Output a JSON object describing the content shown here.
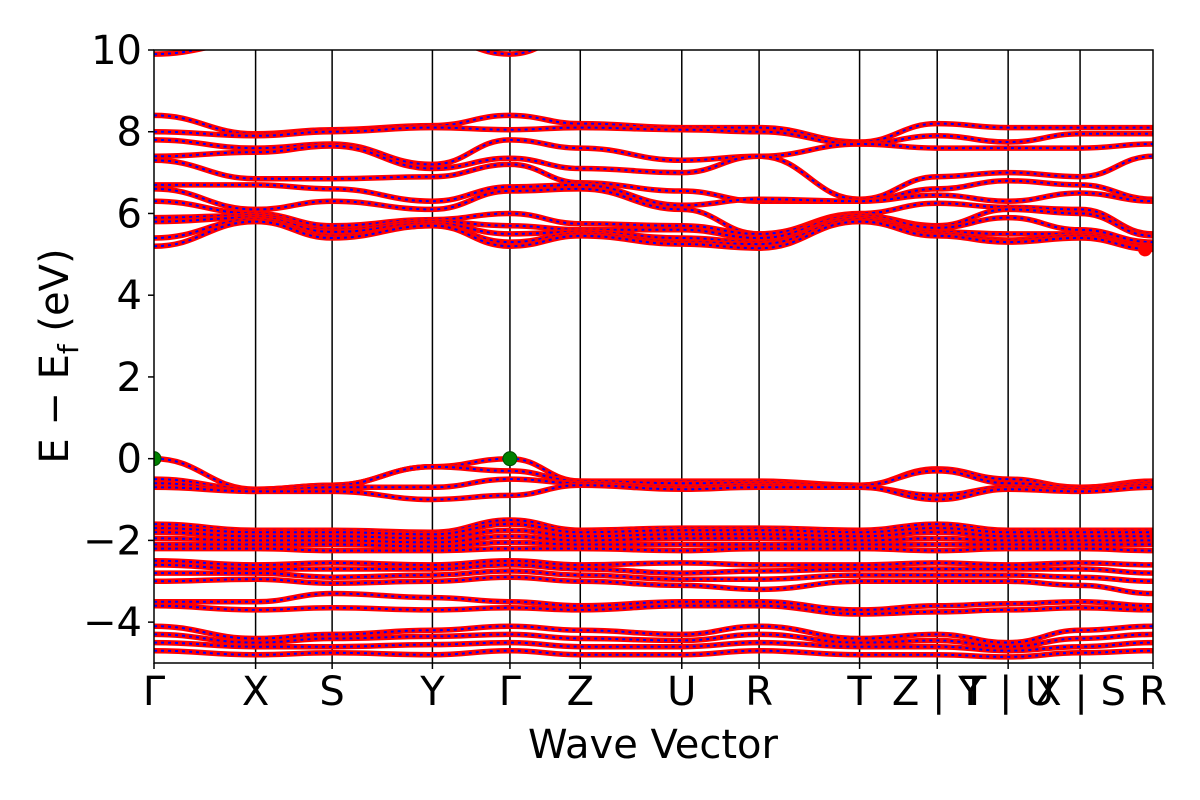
{
  "chart_data": {
    "type": "line",
    "xlabel": "Wave Vector",
    "ylabel_parts": {
      "main": "E − E",
      "sub": "f",
      "unit": " (eV)"
    },
    "ylim": [
      -5,
      10
    ],
    "yticks": [
      {
        "value": -4,
        "label": "−4"
      },
      {
        "value": -2,
        "label": "−2"
      },
      {
        "value": 0,
        "label": "0"
      },
      {
        "value": 2,
        "label": "2"
      },
      {
        "value": 4,
        "label": "4"
      },
      {
        "value": 6,
        "label": "6"
      },
      {
        "value": 8,
        "label": "8"
      },
      {
        "value": 10,
        "label": "10"
      }
    ],
    "kpath_range": [
      0,
      1
    ],
    "kpoints": [
      {
        "pos": 0.0,
        "label": "Γ"
      },
      {
        "pos": 0.1017,
        "label": "X"
      },
      {
        "pos": 0.1783,
        "label": "S"
      },
      {
        "pos": 0.2787,
        "label": "Y"
      },
      {
        "pos": 0.3563,
        "label": "Γ"
      },
      {
        "pos": 0.4267,
        "label": "Z"
      },
      {
        "pos": 0.5283,
        "label": "U"
      },
      {
        "pos": 0.6057,
        "label": "R"
      },
      {
        "pos": 0.7063,
        "label": "T"
      },
      {
        "pos": 0.784,
        "label": "Z | Y"
      },
      {
        "pos": 0.855,
        "label": "T | U"
      },
      {
        "pos": 0.927,
        "label": "X | S"
      },
      {
        "pos": 1.0,
        "label": "R"
      }
    ],
    "grid": false,
    "series": [
      {
        "color": "#ff0000",
        "style": "solid"
      },
      {
        "color": "#0000ff",
        "style": "dashed"
      }
    ],
    "vbm_points": [
      {
        "k": 0.0,
        "e": 0.0
      },
      {
        "k": 0.3563,
        "e": 0.0
      }
    ],
    "cbm_point": {
      "k": 0.992,
      "e": 5.12
    },
    "vbm_color": "#008000",
    "cbm_color": "#ff0000",
    "bands": [
      {
        "e": [
          9.9,
          10.2,
          10.3,
          10.3,
          9.9,
          10.4,
          10.5,
          10.5,
          10.6,
          10.6,
          10.6,
          10.6,
          10.6
        ]
      },
      {
        "e": [
          8.4,
          7.95,
          8.05,
          8.15,
          8.4,
          8.2,
          8.1,
          8.1,
          7.75,
          8.2,
          8.1,
          8.1,
          8.1
        ]
      },
      {
        "e": [
          8.0,
          7.9,
          8.0,
          8.1,
          8.05,
          8.1,
          8.05,
          8.0,
          7.7,
          7.9,
          7.75,
          7.95,
          7.95
        ]
      },
      {
        "e": [
          7.8,
          7.6,
          7.7,
          7.2,
          7.8,
          7.6,
          7.3,
          7.4,
          7.7,
          7.6,
          7.6,
          7.6,
          7.7
        ]
      },
      {
        "e": [
          7.4,
          7.5,
          7.65,
          7.1,
          7.35,
          7.1,
          7.0,
          7.4,
          6.35,
          6.9,
          7.0,
          6.9,
          7.4
        ]
      },
      {
        "e": [
          7.3,
          6.85,
          6.85,
          6.9,
          7.2,
          6.75,
          6.55,
          6.3,
          6.3,
          6.6,
          6.8,
          6.7,
          6.35
        ]
      },
      {
        "e": [
          6.7,
          6.7,
          6.6,
          6.3,
          6.65,
          6.7,
          6.2,
          6.35,
          6.3,
          6.45,
          6.3,
          6.5,
          6.3
        ]
      },
      {
        "e": [
          6.6,
          6.1,
          6.3,
          6.1,
          6.55,
          6.6,
          6.1,
          5.5,
          6.0,
          6.25,
          6.15,
          6.1,
          5.5
        ]
      },
      {
        "e": [
          6.3,
          6.0,
          5.7,
          5.85,
          6.0,
          5.75,
          5.7,
          5.5,
          5.95,
          5.7,
          6.1,
          6.0,
          5.45
        ]
      },
      {
        "e": [
          5.9,
          5.95,
          5.6,
          5.8,
          5.7,
          5.6,
          5.6,
          5.4,
          5.95,
          5.65,
          5.9,
          5.6,
          5.3
        ]
      },
      {
        "e": [
          5.8,
          5.9,
          5.55,
          5.75,
          5.5,
          5.55,
          5.4,
          5.3,
          5.9,
          5.55,
          5.5,
          5.5,
          5.2
        ]
      },
      {
        "e": [
          5.4,
          5.85,
          5.45,
          5.7,
          5.3,
          5.5,
          5.3,
          5.25,
          5.85,
          5.5,
          5.35,
          5.45,
          5.15
        ]
      },
      {
        "e": [
          5.2,
          5.8,
          5.4,
          5.7,
          5.2,
          5.45,
          5.25,
          5.15,
          5.8,
          5.45,
          5.3,
          5.4,
          5.12
        ]
      },
      {
        "e": [
          0.0,
          -0.75,
          -0.65,
          -0.2,
          0.0,
          -0.55,
          -0.55,
          -0.55,
          -0.65,
          -0.25,
          -0.5,
          -0.7,
          -0.55
        ]
      },
      {
        "e": [
          -0.5,
          -0.75,
          -0.65,
          -0.2,
          -0.3,
          -0.55,
          -0.6,
          -0.6,
          -0.65,
          -0.3,
          -0.6,
          -0.7,
          -0.6
        ]
      },
      {
        "e": [
          -0.6,
          -0.8,
          -0.7,
          -0.7,
          -0.5,
          -0.6,
          -0.7,
          -0.65,
          -0.7,
          -0.9,
          -0.7,
          -0.75,
          -0.65
        ]
      },
      {
        "e": [
          -0.7,
          -0.8,
          -0.8,
          -1.0,
          -0.9,
          -0.65,
          -0.75,
          -0.7,
          -0.7,
          -1.0,
          -0.75,
          -0.8,
          -0.7
        ]
      },
      {
        "e": [
          -1.6,
          -1.75,
          -1.75,
          -1.8,
          -1.5,
          -1.75,
          -1.7,
          -1.7,
          -1.75,
          -1.6,
          -1.75,
          -1.75,
          -1.75
        ]
      },
      {
        "e": [
          -1.7,
          -1.8,
          -1.8,
          -1.85,
          -1.6,
          -1.8,
          -1.75,
          -1.75,
          -1.8,
          -1.7,
          -1.8,
          -1.8,
          -1.8
        ]
      },
      {
        "e": [
          -1.8,
          -1.9,
          -1.9,
          -1.95,
          -1.75,
          -1.9,
          -1.85,
          -1.85,
          -1.9,
          -1.8,
          -1.9,
          -1.9,
          -1.9
        ]
      },
      {
        "e": [
          -1.95,
          -2.0,
          -2.0,
          -2.05,
          -1.9,
          -2.0,
          -1.95,
          -1.95,
          -2.0,
          -1.95,
          -2.0,
          -2.0,
          -2.0
        ]
      },
      {
        "e": [
          -2.1,
          -2.1,
          -2.1,
          -2.15,
          -2.05,
          -2.1,
          -2.1,
          -2.1,
          -2.1,
          -2.1,
          -2.1,
          -2.1,
          -2.1
        ]
      },
      {
        "e": [
          -2.2,
          -2.2,
          -2.25,
          -2.25,
          -2.2,
          -2.2,
          -2.25,
          -2.2,
          -2.2,
          -2.25,
          -2.2,
          -2.2,
          -2.25
        ]
      },
      {
        "e": [
          -2.5,
          -2.6,
          -2.55,
          -2.6,
          -2.5,
          -2.6,
          -2.55,
          -2.6,
          -2.6,
          -2.55,
          -2.6,
          -2.55,
          -2.6
        ]
      },
      {
        "e": [
          -2.6,
          -2.7,
          -2.7,
          -2.7,
          -2.6,
          -2.7,
          -2.8,
          -2.75,
          -2.7,
          -2.7,
          -2.7,
          -2.7,
          -2.8
        ]
      },
      {
        "e": [
          -2.8,
          -2.8,
          -2.9,
          -2.85,
          -2.75,
          -2.85,
          -2.95,
          -2.95,
          -2.85,
          -2.85,
          -2.85,
          -2.9,
          -3.0
        ]
      },
      {
        "e": [
          -3.0,
          -2.95,
          -3.05,
          -3.0,
          -2.9,
          -3.0,
          -3.1,
          -3.2,
          -3.0,
          -3.0,
          -3.0,
          -3.1,
          -3.3
        ]
      },
      {
        "e": [
          -3.5,
          -3.5,
          -3.3,
          -3.4,
          -3.5,
          -3.6,
          -3.5,
          -3.5,
          -3.7,
          -3.6,
          -3.55,
          -3.5,
          -3.6
        ]
      },
      {
        "e": [
          -3.6,
          -3.7,
          -3.65,
          -3.7,
          -3.65,
          -3.7,
          -3.6,
          -3.6,
          -3.8,
          -3.75,
          -3.7,
          -3.65,
          -3.7
        ]
      },
      {
        "e": [
          -4.1,
          -4.4,
          -4.3,
          -4.2,
          -4.1,
          -4.2,
          -4.3,
          -4.1,
          -4.4,
          -4.3,
          -4.5,
          -4.2,
          -4.1
        ]
      },
      {
        "e": [
          -4.3,
          -4.5,
          -4.4,
          -4.35,
          -4.3,
          -4.4,
          -4.45,
          -4.3,
          -4.5,
          -4.45,
          -4.6,
          -4.4,
          -4.3
        ]
      },
      {
        "e": [
          -4.5,
          -4.6,
          -4.6,
          -4.55,
          -4.5,
          -4.6,
          -4.6,
          -4.5,
          -4.6,
          -4.6,
          -4.7,
          -4.6,
          -4.5
        ]
      },
      {
        "e": [
          -4.7,
          -4.8,
          -4.75,
          -4.8,
          -4.7,
          -4.8,
          -4.8,
          -4.7,
          -4.8,
          -4.8,
          -4.85,
          -4.75,
          -4.7
        ]
      }
    ]
  }
}
